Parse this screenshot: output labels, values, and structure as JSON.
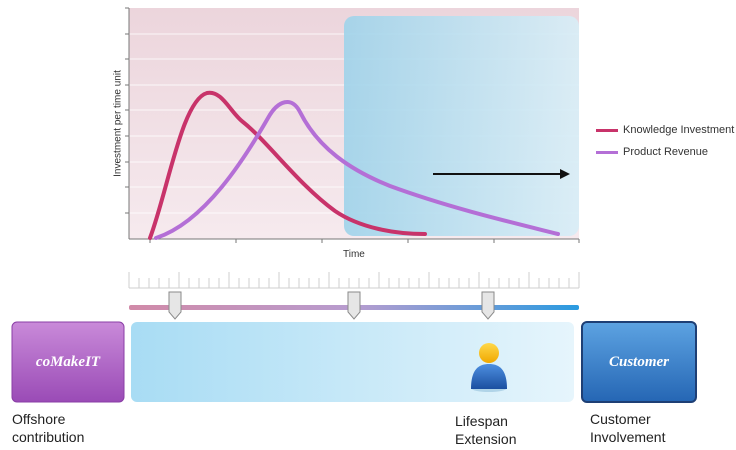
{
  "legend": {
    "knowledge": "Knowledge Investment",
    "revenue": "Product Revenue"
  },
  "axes": {
    "ylabel": "Investment per time unit",
    "xlabel": "Time"
  },
  "boxes": {
    "left": "coMakeIT",
    "right": "Customer"
  },
  "captions": {
    "offshore": "Offshore\ncontribution",
    "lifespan": "Lifespan\nExtension",
    "customer": "Customer\nInvolvement"
  },
  "colors": {
    "knowledge": "#c8336a",
    "revenue": "#b46fd6",
    "left_box": "#b063c8",
    "right_box": "#2f78c8",
    "band": "#bfe6f7"
  },
  "icons": {
    "person": "person-icon",
    "arrow": "arrow-right-icon"
  }
}
